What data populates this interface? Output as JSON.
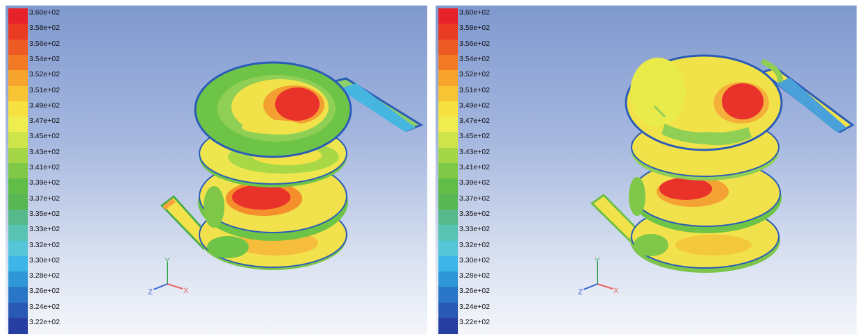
{
  "colorbar": {
    "labels": [
      "3.60e+02",
      "3.58e+02",
      "3.56e+02",
      "3.54e+02",
      "3.52e+02",
      "3.51e+02",
      "3.49e+02",
      "3.47e+02",
      "3.45e+02",
      "3.43e+02",
      "3.41e+02",
      "3.39e+02",
      "3.37e+02",
      "3.35e+02",
      "3.33e+02",
      "3.32e+02",
      "3.30e+02",
      "3.28e+02",
      "3.26e+02",
      "3.24e+02",
      "3.22e+02"
    ],
    "colors": [
      "#e8222a",
      "#ea3b23",
      "#ee5a24",
      "#f27a24",
      "#f6a42b",
      "#f7c434",
      "#f6e141",
      "#eded4d",
      "#cde54a",
      "#a5d647",
      "#7fc848",
      "#61bd47",
      "#58b753",
      "#56b98b",
      "#58c3b3",
      "#55c6d7",
      "#3db6e7",
      "#2f97d8",
      "#2a76c6",
      "#2959b5",
      "#273fa2"
    ]
  },
  "panels": [
    {
      "name": "left"
    },
    {
      "name": "right"
    }
  ],
  "axes": {
    "x": "X",
    "y": "Y",
    "z": "Z"
  }
}
